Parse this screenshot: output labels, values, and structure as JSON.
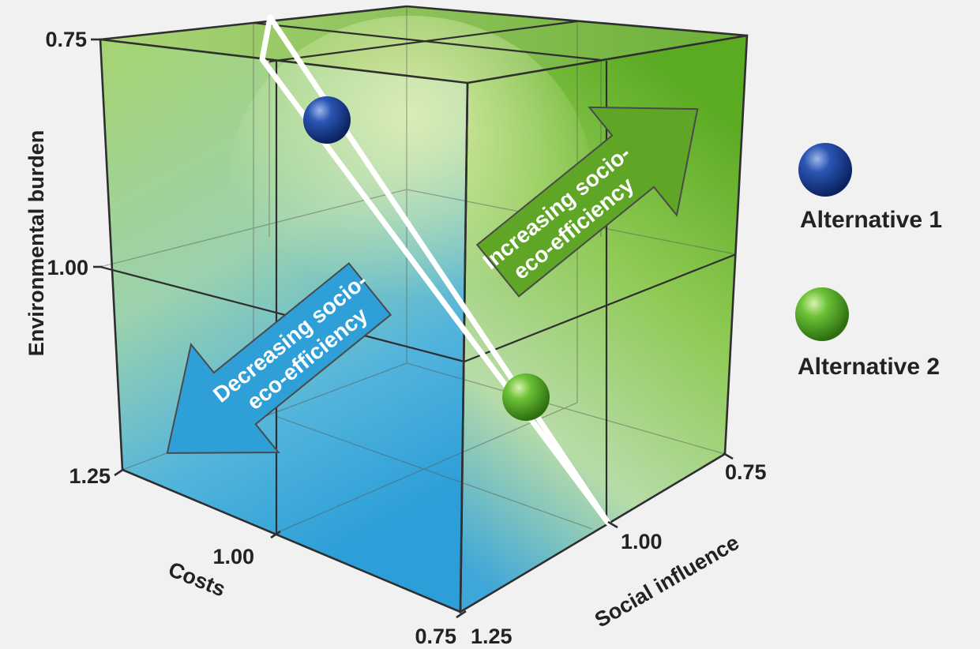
{
  "axes": {
    "y_label": "Environmental burden",
    "x_label": "Costs",
    "z_label": "Social influence",
    "y_ticks": [
      "0.75",
      "1.00",
      "1.25"
    ],
    "x_ticks": [
      "1.00",
      "0.75"
    ],
    "z_ticks": [
      "1.25",
      "1.00",
      "0.75"
    ]
  },
  "arrows": {
    "increase_line1": "Increasing socio-",
    "increase_line2": "eco-efficiency",
    "decrease_line1": "Decreasing socio-",
    "decrease_line2": "eco-efficiency"
  },
  "legend": {
    "alt1": "Alternative 1",
    "alt2": "Alternative 2"
  },
  "colors": {
    "alternative_1": "#1e3f8f",
    "alternative_2": "#5aa72a",
    "increasing_arrow": "#5fa626",
    "decreasing_arrow": "#2f9fd8"
  }
}
